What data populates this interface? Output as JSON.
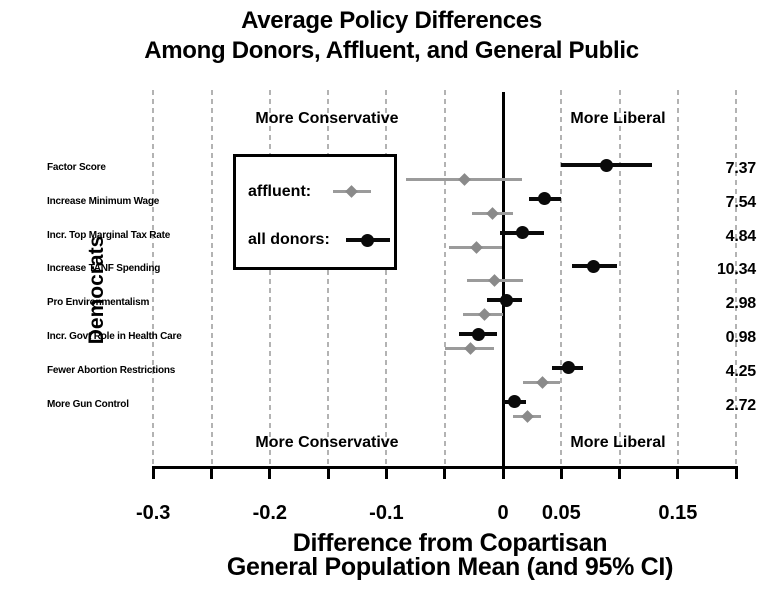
{
  "title": {
    "line1": "Average Policy Differences",
    "line2": "Among Donors, Affluent, and General Public"
  },
  "group_label": "Democrats",
  "direction_labels": {
    "top_left": "More Conservative",
    "top_right": "More Liberal",
    "bottom_left": "More Conservative",
    "bottom_right": "More Liberal"
  },
  "legend": {
    "affluent_label": "affluent:",
    "all_donors_label": "all donors:"
  },
  "axis": {
    "caption_line1": "Difference from Copartisan",
    "caption_line2": "General Population Mean (and 95% CI)"
  },
  "colors": {
    "donors": "#0a0a0a",
    "affluent": "#9b9b9b",
    "affluent_marker": "#8a8a8a",
    "gridline": "#b3b3b3"
  },
  "chart_data": {
    "type": "scatter",
    "subtype": "dot-plot-with-95ci",
    "title": "Average Policy Differences Among Donors, Affluent, and General Public",
    "group": "Democrats",
    "categories": [
      "Factor Score",
      "Increase Minimum Wage",
      "Incr. Top Marginal Tax Rate",
      "Increase TANF Spending",
      "Pro Environmentalism",
      "Incr. Govt Role in Health Care",
      "Fewer Abortion Restrictions",
      "More Gun Control"
    ],
    "series": [
      {
        "name": "all donors",
        "marker": "circle",
        "color": "#0a0a0a",
        "est": [
          0.089,
          0.036,
          0.017,
          0.078,
          0.003,
          -0.021,
          0.056,
          0.01
        ],
        "ci_low": [
          0.05,
          0.022,
          -0.003,
          0.059,
          -0.014,
          -0.038,
          0.042,
          0.0
        ],
        "ci_high": [
          0.128,
          0.05,
          0.035,
          0.098,
          0.016,
          -0.005,
          0.069,
          0.02
        ]
      },
      {
        "name": "affluent",
        "marker": "diamond",
        "color": "#9b9b9b",
        "est": [
          -0.033,
          -0.009,
          -0.023,
          -0.007,
          -0.016,
          -0.028,
          0.034,
          0.021
        ],
        "ci_low": [
          -0.083,
          -0.027,
          -0.046,
          -0.031,
          -0.034,
          -0.05,
          0.017,
          0.009
        ],
        "ci_high": [
          0.016,
          0.009,
          -0.001,
          0.017,
          0.0,
          -0.008,
          0.049,
          0.033
        ]
      }
    ],
    "right_column_values": [
      "7.37",
      "7.54",
      "4.84",
      "10.34",
      "2.98",
      "0.98",
      "4.25",
      "2.72"
    ],
    "xlabel": "Difference from Copartisan General Population Mean (and 95% CI)",
    "xlim": [
      -0.325,
      0.21
    ],
    "xticks": [
      {
        "v": -0.3,
        "label": "-0.3"
      },
      {
        "v": -0.25,
        "label": ""
      },
      {
        "v": -0.2,
        "label": "-0.2"
      },
      {
        "v": -0.15,
        "label": ""
      },
      {
        "v": -0.1,
        "label": "-0.1"
      },
      {
        "v": -0.05,
        "label": ""
      },
      {
        "v": 0.0,
        "label": "0"
      },
      {
        "v": 0.05,
        "label": "0.05"
      },
      {
        "v": 0.1,
        "label": ""
      },
      {
        "v": 0.15,
        "label": "0.15"
      },
      {
        "v": 0.2,
        "label": ""
      }
    ],
    "zero_line": true,
    "grid": "dashed-vertical"
  }
}
